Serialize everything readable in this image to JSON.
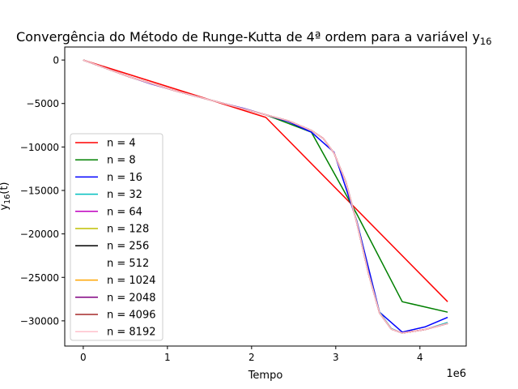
{
  "chart_data": {
    "type": "line",
    "title": "Convergência do Método de Runge-Kutta de 4ª ordem para a variável y",
    "title_sub": "16",
    "xlabel": "Tempo",
    "x_multiplier_label": "1e6",
    "ylabel": "y",
    "ylabel_sub": "16",
    "ylabel_suffix": "(t)",
    "xlim": [
      -0.22,
      4.55
    ],
    "ylim": [
      -32900,
      1500
    ],
    "x_unit": 1000000,
    "xticks": [
      0,
      1,
      2,
      3,
      4
    ],
    "xtick_labels": [
      "0",
      "1",
      "2",
      "3",
      "4"
    ],
    "yticks": [
      0,
      -5000,
      -10000,
      -15000,
      -20000,
      -25000,
      -30000
    ],
    "ytick_labels": [
      "0",
      "−5000",
      "−10000",
      "−15000",
      "−20000",
      "−25000",
      "−30000"
    ],
    "grid": false,
    "legend_position": "lower-left",
    "series": [
      {
        "name": "n = 4",
        "color": "#ff0000",
        "x": [
          0,
          2.17,
          4.33
        ],
        "y": [
          0,
          -6600,
          -27800
        ]
      },
      {
        "name": "n = 8",
        "color": "#008000",
        "x": [
          0,
          0.54,
          1.08,
          1.63,
          2.17,
          2.71,
          3.25,
          3.79,
          4.33
        ],
        "y": [
          0,
          -1900,
          -3500,
          -4900,
          -6300,
          -8300,
          -17700,
          -27800,
          -29000
        ]
      },
      {
        "name": "n = 16",
        "color": "#0000ff",
        "x": [
          0,
          0.27,
          0.54,
          0.81,
          1.08,
          1.35,
          1.63,
          1.9,
          2.17,
          2.44,
          2.71,
          2.98,
          3.25,
          3.52,
          3.79,
          4.06,
          4.33
        ],
        "y": [
          0,
          -950,
          -1900,
          -2750,
          -3500,
          -4200,
          -4900,
          -5550,
          -6300,
          -7100,
          -8300,
          -10600,
          -18500,
          -29000,
          -31300,
          -30700,
          -29600
        ]
      },
      {
        "name": "n = 32",
        "color": "#00bfbf",
        "x": [
          0,
          0.54,
          1.08,
          1.63,
          2.17,
          2.44,
          2.71,
          2.85,
          2.98,
          3.12,
          3.25,
          3.39,
          3.52,
          3.66,
          3.79,
          4.06,
          4.33
        ],
        "y": [
          0,
          -1900,
          -3500,
          -4900,
          -6300,
          -7000,
          -8100,
          -9000,
          -10700,
          -14000,
          -18600,
          -24500,
          -29000,
          -30900,
          -31400,
          -31000,
          -30200
        ]
      },
      {
        "name": "n = 64",
        "color": "#bf00bf",
        "x": [
          0,
          0.54,
          1.08,
          1.63,
          2.17,
          2.44,
          2.71,
          2.85,
          2.98,
          3.12,
          3.25,
          3.39,
          3.52,
          3.66,
          3.79,
          4.06,
          4.33
        ],
        "y": [
          0,
          -1900,
          -3500,
          -4900,
          -6300,
          -7000,
          -8100,
          -9000,
          -10700,
          -14000,
          -18700,
          -24600,
          -29100,
          -30950,
          -31400,
          -31000,
          -30300
        ]
      },
      {
        "name": "n = 128",
        "color": "#bfbf00",
        "x": [
          0,
          0.54,
          1.08,
          1.63,
          2.17,
          2.44,
          2.71,
          2.85,
          2.98,
          3.12,
          3.25,
          3.39,
          3.52,
          3.66,
          3.79,
          4.06,
          4.33
        ],
        "y": [
          0,
          -1900,
          -3500,
          -4900,
          -6300,
          -7000,
          -8100,
          -9000,
          -10700,
          -14000,
          -18700,
          -24600,
          -29100,
          -30950,
          -31400,
          -31000,
          -30300
        ]
      },
      {
        "name": "n = 256",
        "color": "#000000",
        "x": [
          0,
          0.54,
          1.08,
          1.63,
          2.17,
          2.44,
          2.71,
          2.85,
          2.98,
          3.12,
          3.25,
          3.39,
          3.52,
          3.66,
          3.79,
          4.06,
          4.33
        ],
        "y": [
          0,
          -1900,
          -3500,
          -4900,
          -6300,
          -7000,
          -8100,
          -9000,
          -10700,
          -14000,
          -18700,
          -24600,
          -29100,
          -30950,
          -31400,
          -31000,
          -30300
        ]
      },
      {
        "name": "n = 512",
        "color": "#ffffff",
        "x": [
          0,
          0.54,
          1.08,
          1.63,
          2.17,
          2.44,
          2.71,
          2.85,
          2.98,
          3.12,
          3.25,
          3.39,
          3.52,
          3.66,
          3.79,
          4.06,
          4.33
        ],
        "y": [
          0,
          -1900,
          -3500,
          -4900,
          -6300,
          -7000,
          -8100,
          -9000,
          -10700,
          -14000,
          -18700,
          -24600,
          -29100,
          -30950,
          -31400,
          -31000,
          -30300
        ]
      },
      {
        "name": "n = 1024",
        "color": "#ffa500",
        "x": [
          0,
          0.54,
          1.08,
          1.63,
          2.17,
          2.44,
          2.71,
          2.85,
          2.98,
          3.12,
          3.25,
          3.39,
          3.52,
          3.66,
          3.79,
          4.06,
          4.33
        ],
        "y": [
          0,
          -1900,
          -3500,
          -4900,
          -6300,
          -7000,
          -8100,
          -9000,
          -10700,
          -14000,
          -18700,
          -24600,
          -29100,
          -30950,
          -31400,
          -31000,
          -30300
        ]
      },
      {
        "name": "n = 2048",
        "color": "#800080",
        "x": [
          0,
          0.54,
          1.08,
          1.63,
          2.17,
          2.44,
          2.71,
          2.85,
          2.98,
          3.12,
          3.25,
          3.39,
          3.52,
          3.66,
          3.79,
          4.06,
          4.33
        ],
        "y": [
          0,
          -1900,
          -3500,
          -4900,
          -6300,
          -7000,
          -8100,
          -9000,
          -10700,
          -14000,
          -18700,
          -24600,
          -29100,
          -30950,
          -31400,
          -31000,
          -30300
        ]
      },
      {
        "name": "n = 4096",
        "color": "#a52a2a",
        "x": [
          0,
          0.54,
          1.08,
          1.63,
          2.17,
          2.44,
          2.71,
          2.85,
          2.98,
          3.12,
          3.25,
          3.39,
          3.52,
          3.66,
          3.79,
          4.06,
          4.33
        ],
        "y": [
          0,
          -1900,
          -3500,
          -4900,
          -6300,
          -7000,
          -8100,
          -9000,
          -10700,
          -14000,
          -18700,
          -24600,
          -29100,
          -30950,
          -31400,
          -31000,
          -30300
        ]
      },
      {
        "name": "n = 8192",
        "color": "#ffc0cb",
        "x": [
          0,
          0.54,
          1.08,
          1.63,
          2.17,
          2.44,
          2.71,
          2.85,
          2.98,
          3.12,
          3.25,
          3.39,
          3.52,
          3.66,
          3.79,
          4.06,
          4.33
        ],
        "y": [
          0,
          -1900,
          -3500,
          -4900,
          -6300,
          -7000,
          -8100,
          -9000,
          -10700,
          -14000,
          -18700,
          -24600,
          -29100,
          -30950,
          -31400,
          -31000,
          -30300
        ]
      }
    ]
  }
}
